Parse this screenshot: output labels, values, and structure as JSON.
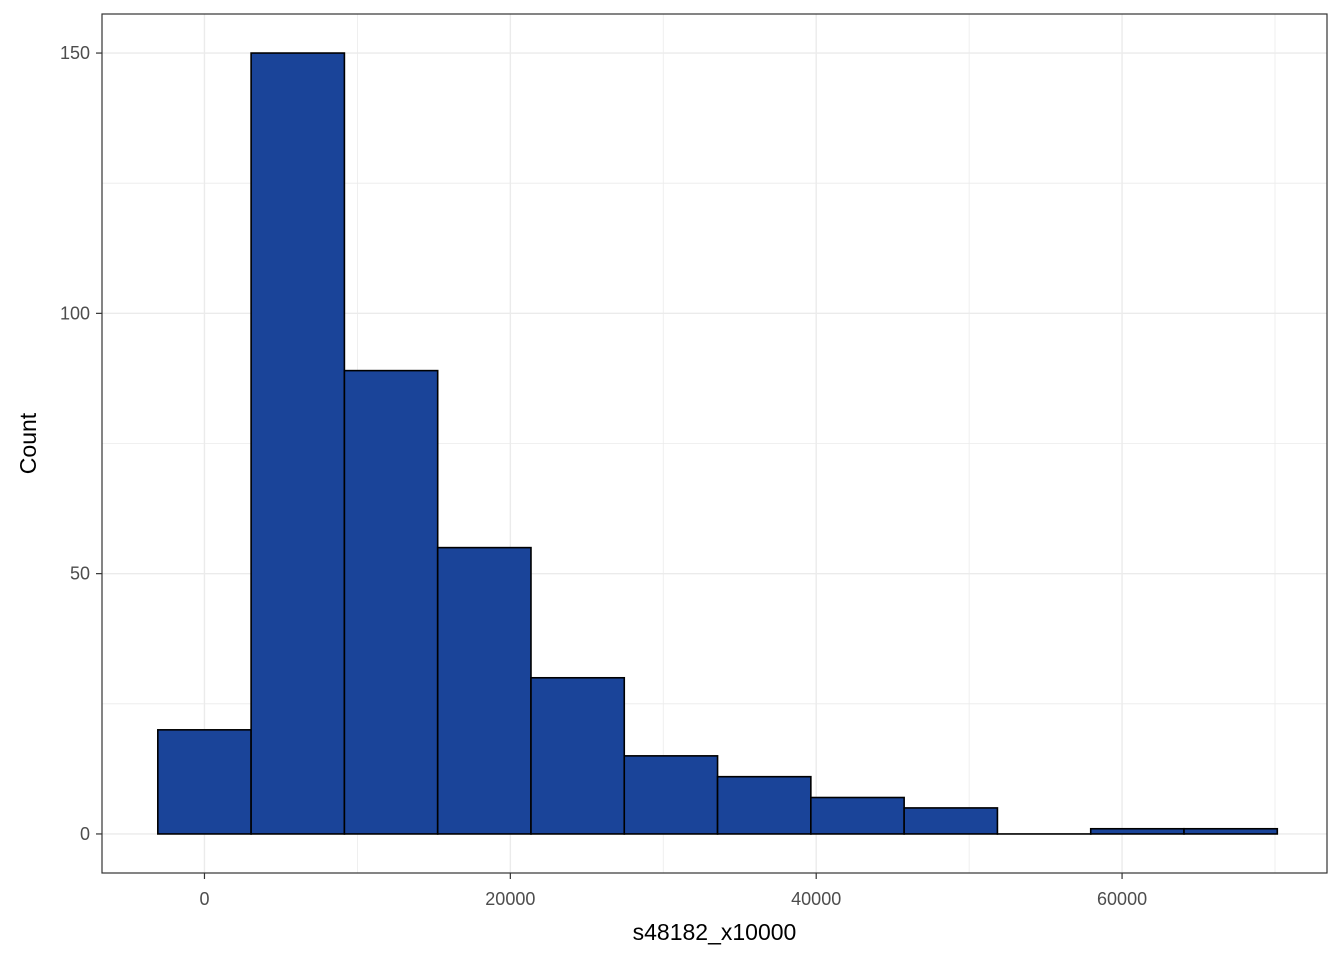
{
  "chart_data": {
    "type": "bar",
    "subtype": "histogram",
    "xlabel": "s48182_x10000",
    "ylabel": "Count",
    "xlim": [
      -6700,
      73400
    ],
    "ylim": [
      -7.5,
      157.5
    ],
    "x_ticks": [
      0,
      20000,
      40000,
      60000
    ],
    "x_tick_labels": [
      "0",
      "20000",
      "40000",
      "60000"
    ],
    "y_ticks": [
      0,
      50,
      100,
      150
    ],
    "y_tick_labels": [
      "0",
      "50",
      "100",
      "150"
    ],
    "bin_width": 6100,
    "bins": [
      {
        "x0": -3050,
        "x1": 3050,
        "count": 20
      },
      {
        "x0": 3050,
        "x1": 9150,
        "count": 150
      },
      {
        "x0": 9150,
        "x1": 15250,
        "count": 89
      },
      {
        "x0": 15250,
        "x1": 21350,
        "count": 55
      },
      {
        "x0": 21350,
        "x1": 27450,
        "count": 30
      },
      {
        "x0": 27450,
        "x1": 33550,
        "count": 15
      },
      {
        "x0": 33550,
        "x1": 39650,
        "count": 11
      },
      {
        "x0": 39650,
        "x1": 45750,
        "count": 7
      },
      {
        "x0": 45750,
        "x1": 51850,
        "count": 5
      },
      {
        "x0": 51850,
        "x1": 57950,
        "count": 0
      },
      {
        "x0": 57950,
        "x1": 64050,
        "count": 1
      },
      {
        "x0": 64050,
        "x1": 70150,
        "count": 1
      }
    ],
    "fill_color": "#1a4499",
    "outline_color": "#000000",
    "grid": true,
    "grid_color": "#ebebeb",
    "legend": "none"
  }
}
